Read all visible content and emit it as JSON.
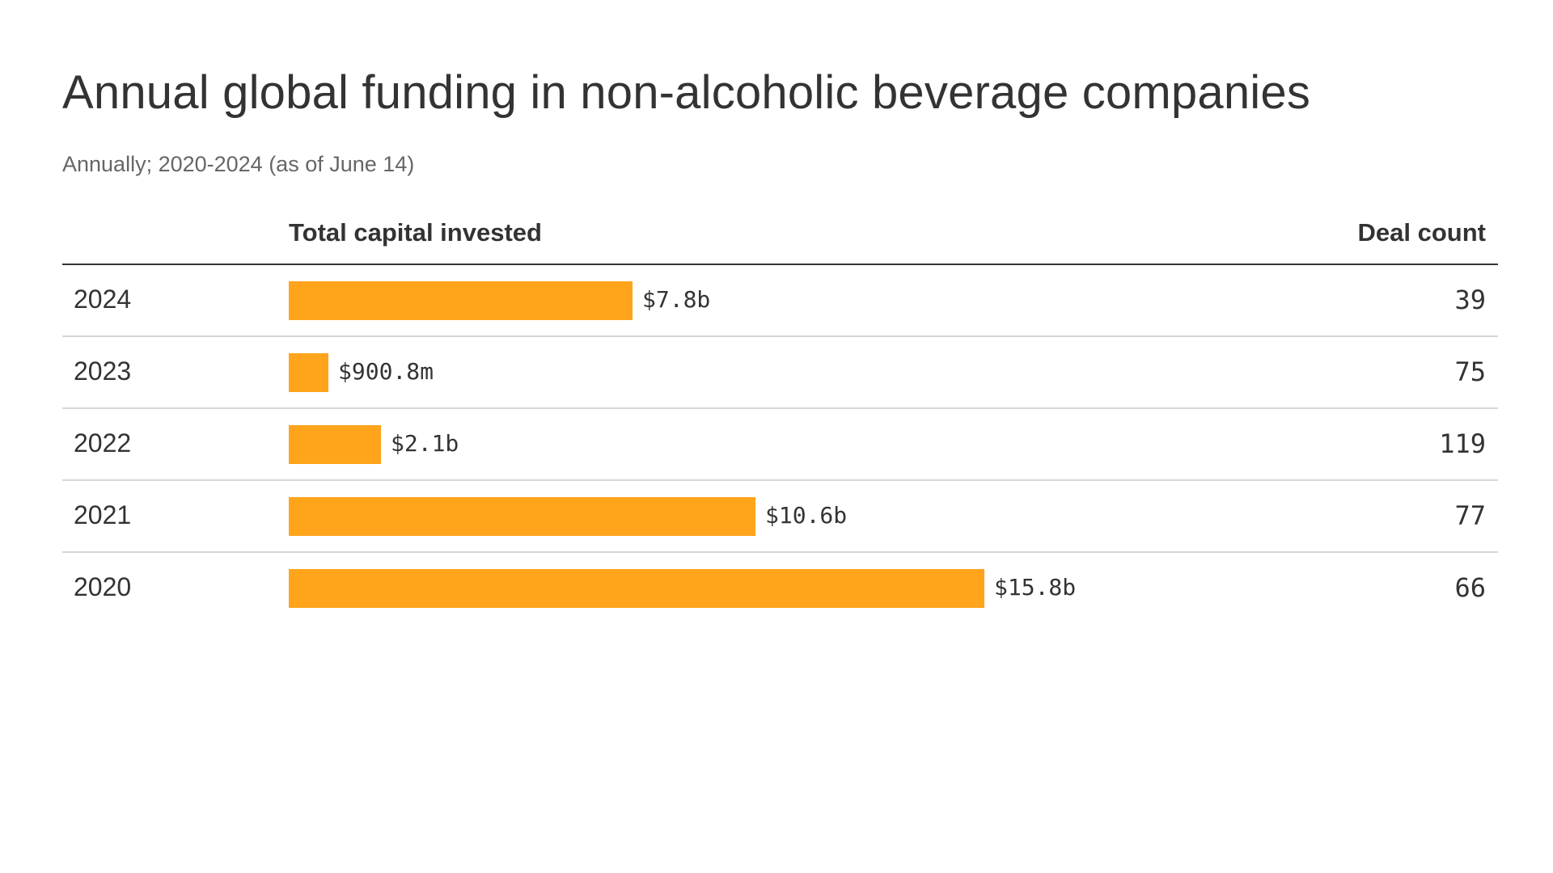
{
  "chart_data": {
    "type": "bar",
    "orientation": "horizontal",
    "title": "Annual global funding in non-alcoholic beverage companies",
    "subtitle": "Annually; 2020-2024 (as of June 14)",
    "columns": {
      "capital": "Total capital invested",
      "deals": "Deal count"
    },
    "unit": "billions USD",
    "xlim": [
      0,
      15.8
    ],
    "bar_color": "#ffa41b",
    "rows": [
      {
        "year": "2024",
        "value": 7.8,
        "label": "$7.8b",
        "deals": "39"
      },
      {
        "year": "2023",
        "value": 0.9008,
        "label": "$900.8m",
        "deals": "75"
      },
      {
        "year": "2022",
        "value": 2.1,
        "label": "$2.1b",
        "deals": "119"
      },
      {
        "year": "2021",
        "value": 10.6,
        "label": "$10.6b",
        "deals": "77"
      },
      {
        "year": "2020",
        "value": 15.8,
        "label": "$15.8b",
        "deals": "66"
      }
    ]
  }
}
